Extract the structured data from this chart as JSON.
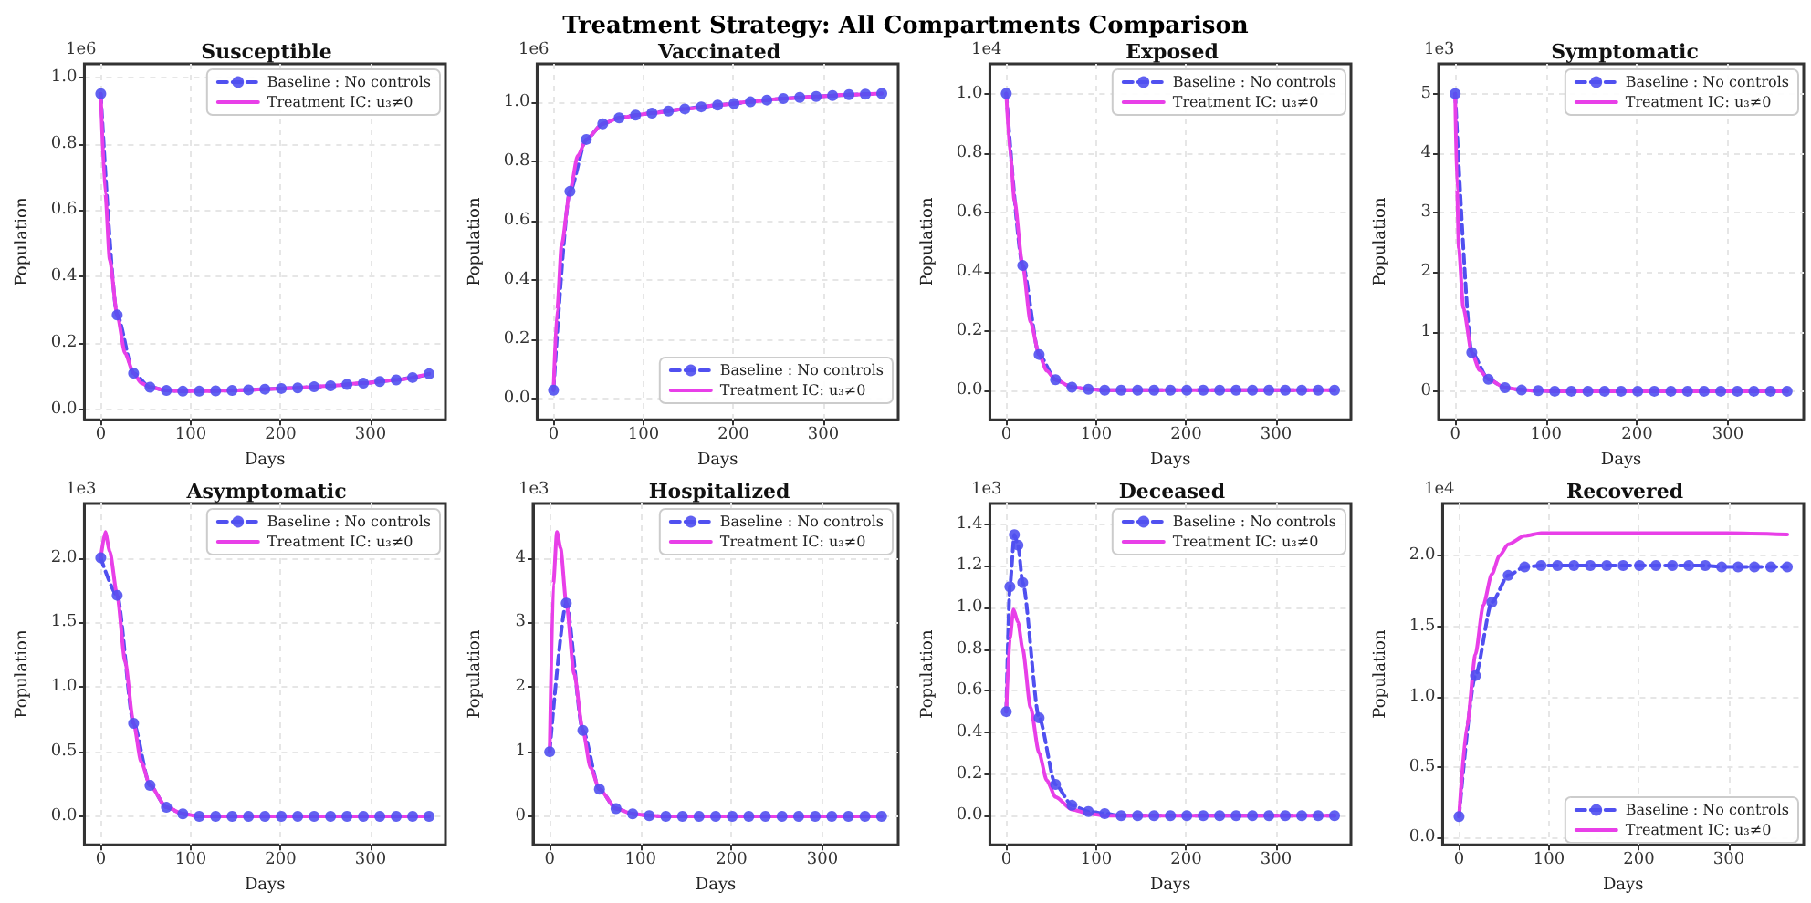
{
  "chart_data": [
    {
      "type": "line",
      "title": "Susceptible",
      "xlabel": "Days",
      "ylabel": "Population",
      "annotations": [
        "Treatment Strategy: All Compartments Comparison",
        "1e6"
      ],
      "legend": "top right",
      "grid": true,
      "xlim": [
        -18.25,
        383.25
      ],
      "xticks": [
        0,
        100,
        200,
        300
      ],
      "ylim": [
        -0.03,
        1.04
      ],
      "yticks": [
        {
          "value": 0,
          "label": "0.0"
        },
        0.2,
        0.4,
        0.6,
        0.8,
        {
          "value": 1,
          "label": "1.0"
        }
      ],
      "series": [
        {
          "name": "Baseline : No controls",
          "color": "#5050f0",
          "marker": "circle",
          "line_style": "dashed",
          "x": [
            0,
            18.25,
            36.5,
            54.75,
            73,
            91.25,
            109.5,
            127.75,
            146,
            164.25,
            182.5,
            200.75,
            219,
            237.25,
            255.5,
            273.75,
            292,
            310.25,
            328.5,
            346.75,
            365
          ],
          "values": [
            0.95,
            0.285,
            0.11,
            0.068,
            0.058,
            0.056,
            0.056,
            0.057,
            0.058,
            0.06,
            0.062,
            0.064,
            0.066,
            0.069,
            0.072,
            0.076,
            0.08,
            0.085,
            0.09,
            0.097,
            0.108
          ]
        },
        {
          "name": "Treatment IC: u₃≠0",
          "color": "#e83fe8",
          "marker": "none",
          "line_style": "solid",
          "x": [
            0,
            5,
            10,
            18.25,
            27,
            36.5,
            45,
            54.75,
            73,
            91.25,
            109.5,
            146,
            182.5,
            219,
            255.5,
            292,
            328.5,
            365
          ],
          "values": [
            0.95,
            0.65,
            0.45,
            0.285,
            0.17,
            0.11,
            0.08,
            0.068,
            0.058,
            0.056,
            0.056,
            0.058,
            0.062,
            0.066,
            0.072,
            0.08,
            0.09,
            0.108
          ]
        }
      ]
    },
    {
      "type": "line",
      "title": "Vaccinated",
      "xlabel": "Days",
      "ylabel": "Population",
      "annotations": [
        "1e6"
      ],
      "legend": "bottom right",
      "grid": true,
      "xlim": [
        -18.25,
        383.25
      ],
      "xticks": [
        0,
        100,
        200,
        300
      ],
      "ylim": [
        -0.07,
        1.13
      ],
      "yticks": [
        {
          "value": 0,
          "label": "0.0"
        },
        0.2,
        0.4,
        0.6,
        0.8,
        {
          "value": 1,
          "label": "1.0"
        }
      ],
      "series": [
        {
          "name": "Baseline : No controls",
          "color": "#5050f0",
          "marker": "circle",
          "line_style": "dashed",
          "x": [
            0,
            18.25,
            36.5,
            54.75,
            73,
            91.25,
            109.5,
            127.75,
            146,
            164.25,
            182.5,
            200.75,
            219,
            237.25,
            255.5,
            273.75,
            292,
            310.25,
            328.5,
            346.75,
            365
          ],
          "values": [
            0.03,
            0.7,
            0.875,
            0.928,
            0.948,
            0.957,
            0.964,
            0.971,
            0.978,
            0.985,
            0.991,
            0.996,
            1.002,
            1.008,
            1.013,
            1.017,
            1.02,
            1.023,
            1.026,
            1.028,
            1.03
          ]
        },
        {
          "name": "Treatment IC: u₃≠0",
          "color": "#e83fe8",
          "marker": "none",
          "line_style": "solid",
          "x": [
            0,
            4,
            9,
            18.25,
            27,
            36.5,
            54.75,
            73,
            109.5,
            146,
            182.5,
            219,
            255.5,
            292,
            328.5,
            365
          ],
          "values": [
            0.03,
            0.3,
            0.52,
            0.7,
            0.82,
            0.875,
            0.928,
            0.948,
            0.964,
            0.978,
            0.991,
            1.002,
            1.013,
            1.02,
            1.026,
            1.03
          ]
        }
      ]
    },
    {
      "type": "line",
      "title": "Exposed",
      "xlabel": "Days",
      "ylabel": "Population",
      "annotations": [
        "1e4"
      ],
      "legend": "top right",
      "grid": true,
      "xlim": [
        -18.25,
        383.25
      ],
      "xticks": [
        0,
        100,
        200,
        300
      ],
      "ylim": [
        -0.1,
        1.1
      ],
      "yticks": [
        {
          "value": 0,
          "label": "0.0"
        },
        0.2,
        0.4,
        0.6,
        0.8,
        {
          "value": 1,
          "label": "1.0"
        }
      ],
      "series": [
        {
          "name": "Baseline : No controls",
          "color": "#5050f0",
          "marker": "circle",
          "line_style": "dashed",
          "x": [
            0,
            18.25,
            36.5,
            54.75,
            73,
            91.25,
            109.5,
            127.75,
            146,
            164.25,
            182.5,
            200.75,
            219,
            237.25,
            255.5,
            273.75,
            292,
            310.25,
            328.5,
            346.75,
            365
          ],
          "values": [
            1.0,
            0.42,
            0.12,
            0.035,
            0.01,
            0.003,
            0,
            0,
            0,
            0,
            0,
            0,
            0,
            0,
            0,
            0,
            0,
            0,
            0,
            0,
            0
          ]
        },
        {
          "name": "Treatment IC: u₃≠0",
          "color": "#e83fe8",
          "marker": "none",
          "line_style": "solid",
          "x": [
            0,
            5,
            9,
            18.25,
            27,
            36.5,
            45,
            54.75,
            73,
            91.25,
            109.5,
            365
          ],
          "values": [
            1.0,
            0.78,
            0.64,
            0.42,
            0.23,
            0.12,
            0.065,
            0.035,
            0.01,
            0.003,
            0,
            0
          ]
        }
      ]
    },
    {
      "type": "line",
      "title": "Symptomatic",
      "xlabel": "Days",
      "ylabel": "Population",
      "annotations": [
        "1e3"
      ],
      "legend": "top right",
      "grid": true,
      "xlim": [
        -18.25,
        383.25
      ],
      "xticks": [
        0,
        100,
        200,
        300
      ],
      "ylim": [
        -0.48,
        5.5
      ],
      "yticks": [
        0,
        1,
        2,
        3,
        4,
        5
      ],
      "series": [
        {
          "name": "Baseline : No controls",
          "color": "#5050f0",
          "marker": "circle",
          "line_style": "dashed",
          "x": [
            0,
            18.25,
            36.5,
            54.75,
            73,
            91.25,
            109.5,
            127.75,
            146,
            164.25,
            182.5,
            200.75,
            219,
            237.25,
            255.5,
            273.75,
            292,
            310.25,
            328.5,
            346.75,
            365
          ],
          "values": [
            5.0,
            0.65,
            0.2,
            0.06,
            0.02,
            0.01,
            0,
            0,
            0,
            0,
            0,
            0,
            0,
            0,
            0,
            0,
            0,
            0,
            0,
            0,
            0
          ]
        },
        {
          "name": "Treatment IC: u₃≠0",
          "color": "#e83fe8",
          "marker": "none",
          "line_style": "solid",
          "x": [
            0,
            2,
            4,
            9,
            18.25,
            27,
            36.5,
            54.75,
            73,
            91.25,
            109.5,
            365
          ],
          "values": [
            5.0,
            3.4,
            2.4,
            1.4,
            0.65,
            0.35,
            0.2,
            0.06,
            0.02,
            0.01,
            0,
            0
          ]
        }
      ]
    },
    {
      "type": "line",
      "title": "Asymptomatic",
      "xlabel": "Days",
      "ylabel": "Population",
      "annotations": [
        "1e3"
      ],
      "legend": "top right",
      "grid": true,
      "xlim": [
        -18.25,
        383.25
      ],
      "xticks": [
        0,
        100,
        200,
        300
      ],
      "ylim": [
        -0.22,
        2.42
      ],
      "yticks": [
        {
          "value": 0,
          "label": "0.0"
        },
        0.5,
        {
          "value": 1,
          "label": "1.0"
        },
        1.5,
        {
          "value": 2,
          "label": "2.0"
        }
      ],
      "series": [
        {
          "name": "Baseline : No controls",
          "color": "#5050f0",
          "marker": "circle",
          "line_style": "dashed",
          "x": [
            0,
            18.25,
            36.5,
            54.75,
            73,
            91.25,
            109.5,
            127.75,
            146,
            164.25,
            182.5,
            200.75,
            219,
            237.25,
            255.5,
            273.75,
            292,
            310.25,
            328.5,
            346.75,
            365
          ],
          "values": [
            2.0,
            1.71,
            0.72,
            0.24,
            0.07,
            0.02,
            0,
            0,
            0,
            0,
            0,
            0,
            0,
            0,
            0,
            0,
            0,
            0,
            0,
            0,
            0
          ]
        },
        {
          "name": "Treatment IC: u₃≠0",
          "color": "#e83fe8",
          "marker": "none",
          "line_style": "solid",
          "x": [
            0,
            5,
            10,
            18.25,
            27,
            36.5,
            45,
            54.75,
            73,
            91.25,
            109.5,
            128,
            365
          ],
          "values": [
            2.0,
            2.2,
            2.05,
            1.71,
            1.2,
            0.72,
            0.42,
            0.24,
            0.07,
            0.02,
            0,
            0,
            0
          ]
        }
      ]
    },
    {
      "type": "line",
      "title": "Hospitalized",
      "xlabel": "Days",
      "ylabel": "Population",
      "annotations": [
        "1e3"
      ],
      "legend": "top right",
      "grid": true,
      "xlim": [
        -18.25,
        383.25
      ],
      "xticks": [
        0,
        100,
        200,
        300
      ],
      "ylim": [
        -0.44,
        4.84
      ],
      "yticks": [
        0,
        1,
        2,
        3,
        4
      ],
      "series": [
        {
          "name": "Baseline : No controls",
          "color": "#5050f0",
          "marker": "circle",
          "line_style": "dashed",
          "x": [
            0,
            18.25,
            36.5,
            54.75,
            73,
            91.25,
            109.5,
            127.75,
            146,
            164.25,
            182.5,
            200.75,
            219,
            237.25,
            255.5,
            273.75,
            292,
            310.25,
            328.5,
            346.75,
            365
          ],
          "values": [
            1.0,
            3.3,
            1.33,
            0.42,
            0.12,
            0.04,
            0.01,
            0,
            0,
            0,
            0,
            0,
            0,
            0,
            0,
            0,
            0,
            0,
            0,
            0,
            0
          ]
        },
        {
          "name": "Treatment IC: u₃≠0",
          "color": "#e83fe8",
          "marker": "none",
          "line_style": "solid",
          "x": [
            0,
            4,
            8,
            12,
            18.25,
            27,
            36.5,
            45,
            54.75,
            73,
            91.25,
            109.5,
            128,
            365
          ],
          "values": [
            1.0,
            3.6,
            4.4,
            4.15,
            3.3,
            2.2,
            1.33,
            0.75,
            0.42,
            0.12,
            0.04,
            0.01,
            0,
            0
          ]
        }
      ]
    },
    {
      "type": "line",
      "title": "Deceased",
      "xlabel": "Days",
      "ylabel": "Population",
      "annotations": [
        "1e3"
      ],
      "legend": "top right",
      "grid": true,
      "xlim": [
        -18.25,
        383.25
      ],
      "xticks": [
        0,
        100,
        200,
        300
      ],
      "ylim": [
        -0.14,
        1.5
      ],
      "yticks": [
        {
          "value": 0,
          "label": "0.0"
        },
        0.2,
        0.4,
        0.6,
        0.8,
        {
          "value": 1,
          "label": "1.0"
        },
        1.2,
        1.4
      ],
      "series": [
        {
          "name": "Baseline : No controls",
          "color": "#5050f0",
          "marker": "circle",
          "line_style": "dashed",
          "x": [
            0,
            4,
            9,
            13,
            18.25,
            36.5,
            54.75,
            73,
            91.25,
            109.5,
            127.75,
            146,
            164.25,
            182.5,
            200.75,
            219,
            237.25,
            255.5,
            273.75,
            292,
            310.25,
            328.5,
            346.75,
            365
          ],
          "values": [
            0.5,
            1.1,
            1.35,
            1.3,
            1.12,
            0.47,
            0.15,
            0.05,
            0.02,
            0.01,
            0,
            0,
            0,
            0,
            0,
            0,
            0,
            0,
            0,
            0,
            0,
            0,
            0,
            0
          ]
        },
        {
          "name": "Treatment IC: u₃≠0",
          "color": "#e83fe8",
          "marker": "none",
          "line_style": "solid",
          "x": [
            0,
            4,
            8,
            13,
            18.25,
            27,
            36.5,
            45,
            54.75,
            73,
            91.25,
            109.5,
            128,
            365
          ],
          "values": [
            0.5,
            0.85,
            0.99,
            0.93,
            0.8,
            0.52,
            0.3,
            0.17,
            0.09,
            0.03,
            0.01,
            0,
            0,
            0
          ]
        }
      ]
    },
    {
      "type": "line",
      "title": "Recovered",
      "xlabel": "Days",
      "ylabel": "Population",
      "annotations": [
        "1e4"
      ],
      "legend": "bottom right",
      "grid": true,
      "xlim": [
        -18.25,
        383.25
      ],
      "xticks": [
        0,
        100,
        200,
        300
      ],
      "ylim": [
        -0.05,
        2.37
      ],
      "yticks": [
        {
          "value": 0,
          "label": "0.0"
        },
        0.5,
        {
          "value": 1,
          "label": "1.0"
        },
        1.5,
        {
          "value": 2,
          "label": "2.0"
        }
      ],
      "series": [
        {
          "name": "Baseline : No controls",
          "color": "#5050f0",
          "marker": "circle",
          "line_style": "dashed",
          "x": [
            0,
            18.25,
            36.5,
            54.75,
            73,
            91.25,
            109.5,
            127.75,
            146,
            164.25,
            182.5,
            200.75,
            219,
            237.25,
            255.5,
            273.75,
            292,
            310.25,
            328.5,
            346.75,
            365
          ],
          "values": [
            0.15,
            1.15,
            1.67,
            1.86,
            1.92,
            1.93,
            1.93,
            1.93,
            1.93,
            1.93,
            1.93,
            1.93,
            1.93,
            1.93,
            1.93,
            1.93,
            1.92,
            1.92,
            1.92,
            1.92,
            1.92
          ]
        },
        {
          "name": "Treatment IC: u₃≠0",
          "color": "#e83fe8",
          "marker": "none",
          "line_style": "solid",
          "x": [
            0,
            9,
            18.25,
            27,
            36.5,
            45,
            54.75,
            73,
            91.25,
            109.5,
            200,
            300,
            365
          ],
          "values": [
            0.15,
            0.8,
            1.3,
            1.65,
            1.87,
            2.0,
            2.08,
            2.14,
            2.16,
            2.16,
            2.16,
            2.16,
            2.15
          ]
        }
      ]
    }
  ]
}
